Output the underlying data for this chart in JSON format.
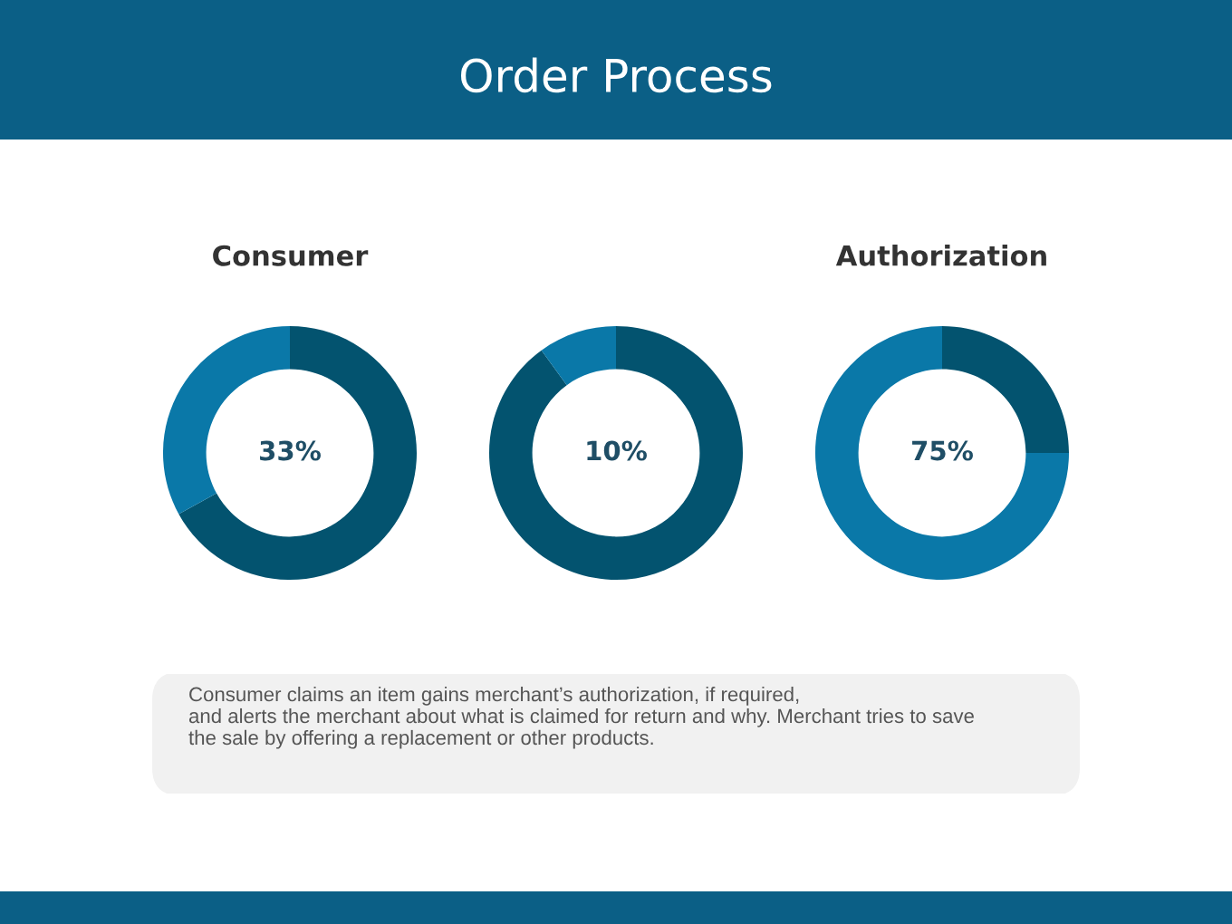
{
  "chart_data": [
    {
      "type": "other",
      "title": "Order Process"
    },
    {
      "type": "donut",
      "title": "Consumer",
      "categories": [
        null,
        null
      ],
      "values": [
        67,
        33
      ],
      "colors": [
        "#03536f",
        "#0a78a8"
      ],
      "annotations": [
        "33%"
      ]
    },
    {
      "type": "donut",
      "categories": [
        null,
        null
      ],
      "values": [
        90,
        10
      ],
      "colors": [
        "#03536f",
        "#0a78a8"
      ],
      "annotations": [
        "10%"
      ]
    },
    {
      "type": "donut",
      "title": "Authorization",
      "categories": [
        null,
        null
      ],
      "values": [
        25,
        75
      ],
      "colors": [
        "#03536f",
        "#0a78a8"
      ],
      "annotations": [
        "75%"
      ]
    },
    {
      "type": "other",
      "annotations": [
        "Consumer claims an item gains merchant’s authorization, if required,\nand alerts the merchant about what is claimed for return and why. Merchant tries to save\nthe sale by offering a replacement or other products."
      ]
    }
  ]
}
